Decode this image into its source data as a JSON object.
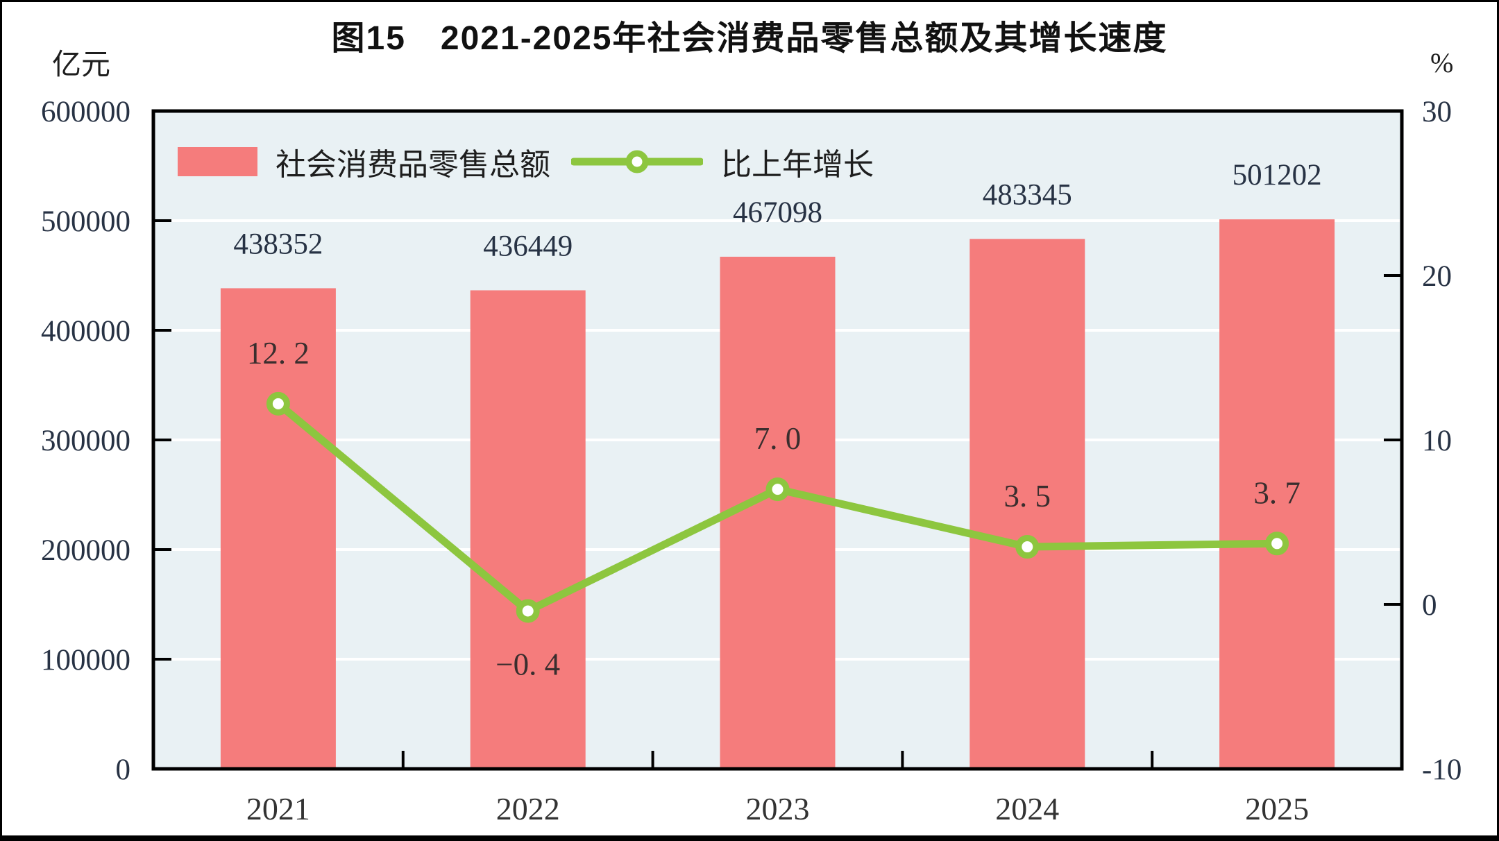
{
  "chart_data": {
    "type": "combo",
    "title": "图15　2021-2025年社会消费品零售总额及其增长速度",
    "categories": [
      "2021",
      "2022",
      "2023",
      "2024",
      "2025"
    ],
    "series": [
      {
        "name": "社会消费品零售总额",
        "type": "bar",
        "axis": "left",
        "values": [
          438352,
          436449,
          467098,
          483345,
          501202
        ],
        "labels": [
          "438352",
          "436449",
          "467098",
          "483345",
          "501202"
        ],
        "color": "#F57C7C"
      },
      {
        "name": "比上年增长",
        "type": "line",
        "axis": "right",
        "values": [
          12.2,
          -0.4,
          7.0,
          3.5,
          3.7
        ],
        "labels": [
          "12. 2",
          "−0. 4",
          "7. 0",
          "3. 5",
          "3. 7"
        ],
        "color": "#8DC63F",
        "marker": "open-circle"
      }
    ],
    "left_axis": {
      "unit": "亿元",
      "min": 0,
      "max": 600000,
      "tick_step": 100000,
      "ticks": [
        "600000",
        "500000",
        "400000",
        "300000",
        "200000",
        "100000",
        "0"
      ]
    },
    "right_axis": {
      "unit": "%",
      "min": -10,
      "max": 30,
      "tick_step": 10,
      "ticks": [
        "30",
        "20",
        "10",
        "0",
        "-10"
      ]
    },
    "grid": "horizontal-white-lines",
    "legend_position": "top-left-inside",
    "colors": {
      "plot_bg": "#E9F1F4",
      "grid": "#FFFFFF",
      "frame": "#000000",
      "text": "#1E1E1E",
      "bar": "#F57C7C",
      "line": "#8DC63F",
      "marker_fill": "#FFFFFF"
    }
  }
}
